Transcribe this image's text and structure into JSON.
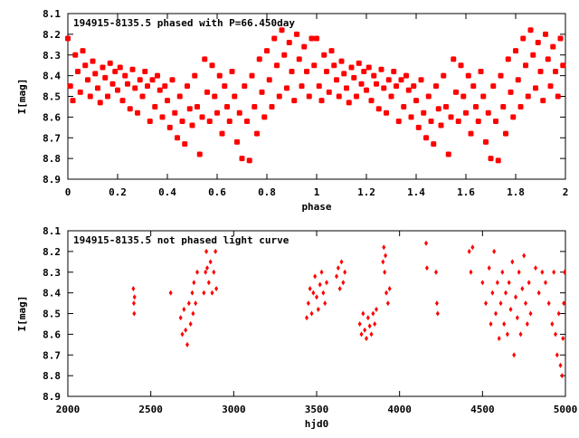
{
  "chart_data": [
    {
      "type": "scatter",
      "title": "194915-8135.5 phased with P=66.450day",
      "xlabel": "phase",
      "ylabel": "I[mag]",
      "xlim": [
        0,
        2
      ],
      "ylim": [
        8.9,
        8.1
      ],
      "y_inverted": true,
      "xticks": [
        "0",
        "0.2",
        "0.4",
        "0.6",
        "0.8",
        "1",
        "1.2",
        "1.4",
        "1.6",
        "1.8",
        "2"
      ],
      "yticks": [
        "8.1",
        "8.2",
        "8.3",
        "8.4",
        "8.5",
        "8.6",
        "8.7",
        "8.8",
        "8.9"
      ],
      "color": "#ff0000",
      "phase_repeat": 2,
      "points": [
        [
          0.0,
          8.22
        ],
        [
          0.01,
          8.45
        ],
        [
          0.02,
          8.52
        ],
        [
          0.03,
          8.3
        ],
        [
          0.04,
          8.38
        ],
        [
          0.05,
          8.48
        ],
        [
          0.06,
          8.28
        ],
        [
          0.07,
          8.35
        ],
        [
          0.08,
          8.42
        ],
        [
          0.09,
          8.5
        ],
        [
          0.1,
          8.33
        ],
        [
          0.11,
          8.39
        ],
        [
          0.12,
          8.46
        ],
        [
          0.13,
          8.53
        ],
        [
          0.14,
          8.36
        ],
        [
          0.15,
          8.41
        ],
        [
          0.16,
          8.5
        ],
        [
          0.17,
          8.34
        ],
        [
          0.18,
          8.44
        ],
        [
          0.19,
          8.38
        ],
        [
          0.2,
          8.47
        ],
        [
          0.21,
          8.36
        ],
        [
          0.22,
          8.52
        ],
        [
          0.23,
          8.4
        ],
        [
          0.24,
          8.44
        ],
        [
          0.25,
          8.56
        ],
        [
          0.26,
          8.37
        ],
        [
          0.27,
          8.46
        ],
        [
          0.28,
          8.58
        ],
        [
          0.29,
          8.42
        ],
        [
          0.3,
          8.5
        ],
        [
          0.31,
          8.38
        ],
        [
          0.32,
          8.45
        ],
        [
          0.33,
          8.62
        ],
        [
          0.34,
          8.42
        ],
        [
          0.35,
          8.55
        ],
        [
          0.36,
          8.4
        ],
        [
          0.37,
          8.47
        ],
        [
          0.38,
          8.6
        ],
        [
          0.39,
          8.45
        ],
        [
          0.4,
          8.52
        ],
        [
          0.41,
          8.65
        ],
        [
          0.42,
          8.42
        ],
        [
          0.43,
          8.58
        ],
        [
          0.44,
          8.7
        ],
        [
          0.45,
          8.5
        ],
        [
          0.46,
          8.62
        ],
        [
          0.47,
          8.73
        ],
        [
          0.48,
          8.45
        ],
        [
          0.49,
          8.56
        ],
        [
          0.5,
          8.64
        ],
        [
          0.51,
          8.4
        ],
        [
          0.52,
          8.55
        ],
        [
          0.53,
          8.78
        ],
        [
          0.54,
          8.6
        ],
        [
          0.55,
          8.32
        ],
        [
          0.56,
          8.48
        ],
        [
          0.57,
          8.62
        ],
        [
          0.58,
          8.35
        ],
        [
          0.59,
          8.5
        ],
        [
          0.6,
          8.58
        ],
        [
          0.61,
          8.4
        ],
        [
          0.62,
          8.68
        ],
        [
          0.63,
          8.45
        ],
        [
          0.64,
          8.55
        ],
        [
          0.65,
          8.62
        ],
        [
          0.66,
          8.38
        ],
        [
          0.67,
          8.5
        ],
        [
          0.68,
          8.72
        ],
        [
          0.69,
          8.58
        ],
        [
          0.7,
          8.8
        ],
        [
          0.71,
          8.45
        ],
        [
          0.72,
          8.62
        ],
        [
          0.73,
          8.81
        ],
        [
          0.74,
          8.4
        ],
        [
          0.75,
          8.55
        ],
        [
          0.76,
          8.68
        ],
        [
          0.77,
          8.32
        ],
        [
          0.78,
          8.48
        ],
        [
          0.79,
          8.6
        ],
        [
          0.8,
          8.28
        ],
        [
          0.81,
          8.42
        ],
        [
          0.82,
          8.55
        ],
        [
          0.83,
          8.22
        ],
        [
          0.84,
          8.35
        ],
        [
          0.85,
          8.5
        ],
        [
          0.86,
          8.18
        ],
        [
          0.87,
          8.3
        ],
        [
          0.88,
          8.46
        ],
        [
          0.89,
          8.24
        ],
        [
          0.9,
          8.38
        ],
        [
          0.91,
          8.52
        ],
        [
          0.92,
          8.2
        ],
        [
          0.93,
          8.32
        ],
        [
          0.94,
          8.45
        ],
        [
          0.95,
          8.26
        ],
        [
          0.96,
          8.38
        ],
        [
          0.97,
          8.5
        ],
        [
          0.98,
          8.22
        ],
        [
          0.99,
          8.35
        ]
      ]
    },
    {
      "type": "scatter",
      "title": "194915-8135.5 not phased light curve",
      "xlabel": "hjd0",
      "ylabel": "I[mag]",
      "xlim": [
        2000,
        5000
      ],
      "ylim": [
        8.9,
        8.1
      ],
      "y_inverted": true,
      "xticks": [
        "2000",
        "2500",
        "3000",
        "3500",
        "4000",
        "4500",
        "5000"
      ],
      "yticks": [
        "8.1",
        "8.2",
        "8.3",
        "8.4",
        "8.5",
        "8.6",
        "8.7",
        "8.8",
        "8.9"
      ],
      "color": "#ff0000",
      "points": [
        [
          2395,
          8.38
        ],
        [
          2398,
          8.45
        ],
        [
          2400,
          8.5
        ],
        [
          2402,
          8.42
        ],
        [
          2620,
          8.4
        ],
        [
          2680,
          8.52
        ],
        [
          2690,
          8.6
        ],
        [
          2700,
          8.48
        ],
        [
          2710,
          8.58
        ],
        [
          2720,
          8.65
        ],
        [
          2730,
          8.45
        ],
        [
          2740,
          8.55
        ],
        [
          2750,
          8.4
        ],
        [
          2755,
          8.5
        ],
        [
          2760,
          8.35
        ],
        [
          2770,
          8.45
        ],
        [
          2780,
          8.3
        ],
        [
          2820,
          8.4
        ],
        [
          2830,
          8.3
        ],
        [
          2835,
          8.2
        ],
        [
          2840,
          8.28
        ],
        [
          2850,
          8.35
        ],
        [
          2860,
          8.25
        ],
        [
          2870,
          8.4
        ],
        [
          2880,
          8.3
        ],
        [
          2890,
          8.2
        ],
        [
          2895,
          8.38
        ],
        [
          3440,
          8.52
        ],
        [
          3450,
          8.45
        ],
        [
          3460,
          8.38
        ],
        [
          3470,
          8.5
        ],
        [
          3480,
          8.4
        ],
        [
          3490,
          8.32
        ],
        [
          3500,
          8.42
        ],
        [
          3510,
          8.48
        ],
        [
          3520,
          8.36
        ],
        [
          3530,
          8.3
        ],
        [
          3540,
          8.4
        ],
        [
          3550,
          8.45
        ],
        [
          3560,
          8.35
        ],
        [
          3620,
          8.32
        ],
        [
          3630,
          8.28
        ],
        [
          3640,
          8.38
        ],
        [
          3650,
          8.25
        ],
        [
          3660,
          8.35
        ],
        [
          3670,
          8.3
        ],
        [
          3760,
          8.55
        ],
        [
          3770,
          8.6
        ],
        [
          3780,
          8.5
        ],
        [
          3790,
          8.58
        ],
        [
          3800,
          8.62
        ],
        [
          3810,
          8.52
        ],
        [
          3820,
          8.56
        ],
        [
          3830,
          8.6
        ],
        [
          3840,
          8.5
        ],
        [
          3850,
          8.55
        ],
        [
          3860,
          8.48
        ],
        [
          3900,
          8.25
        ],
        [
          3905,
          8.18
        ],
        [
          3910,
          8.3
        ],
        [
          3915,
          8.22
        ],
        [
          3920,
          8.4
        ],
        [
          3930,
          8.45
        ],
        [
          3940,
          8.38
        ],
        [
          4160,
          8.16
        ],
        [
          4165,
          8.28
        ],
        [
          4220,
          8.3
        ],
        [
          4225,
          8.45
        ],
        [
          4230,
          8.5
        ],
        [
          4420,
          8.2
        ],
        [
          4430,
          8.3
        ],
        [
          4440,
          8.18
        ],
        [
          4500,
          8.35
        ],
        [
          4520,
          8.45
        ],
        [
          4540,
          8.28
        ],
        [
          4550,
          8.55
        ],
        [
          4560,
          8.4
        ],
        [
          4570,
          8.2
        ],
        [
          4580,
          8.5
        ],
        [
          4590,
          8.35
        ],
        [
          4600,
          8.62
        ],
        [
          4610,
          8.45
        ],
        [
          4620,
          8.3
        ],
        [
          4630,
          8.55
        ],
        [
          4640,
          8.4
        ],
        [
          4650,
          8.6
        ],
        [
          4660,
          8.35
        ],
        [
          4670,
          8.48
        ],
        [
          4680,
          8.25
        ],
        [
          4690,
          8.7
        ],
        [
          4700,
          8.42
        ],
        [
          4710,
          8.52
        ],
        [
          4720,
          8.3
        ],
        [
          4730,
          8.6
        ],
        [
          4740,
          8.38
        ],
        [
          4750,
          8.22
        ],
        [
          4760,
          8.45
        ],
        [
          4770,
          8.55
        ],
        [
          4780,
          8.35
        ],
        [
          4790,
          8.5
        ],
        [
          4820,
          8.28
        ],
        [
          4840,
          8.4
        ],
        [
          4860,
          8.3
        ],
        [
          4880,
          8.35
        ],
        [
          4900,
          8.45
        ],
        [
          4920,
          8.55
        ],
        [
          4930,
          8.3
        ],
        [
          4940,
          8.6
        ],
        [
          4950,
          8.7
        ],
        [
          4960,
          8.5
        ],
        [
          4970,
          8.75
        ],
        [
          4980,
          8.8
        ],
        [
          4985,
          8.62
        ],
        [
          4990,
          8.45
        ],
        [
          4995,
          8.3
        ]
      ]
    }
  ]
}
